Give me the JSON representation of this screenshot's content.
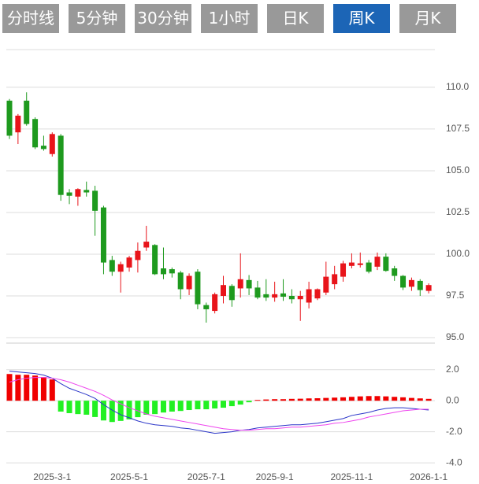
{
  "tabs": [
    "分时线",
    "5分钟",
    "30分钟",
    "1小时",
    "日K",
    "周K",
    "月K"
  ],
  "active_tab": 5,
  "chart_data": [
    {
      "type": "candlestick",
      "categories": [
        null,
        null,
        null,
        null,
        null,
        "2025-3-1",
        null,
        null,
        null,
        null,
        null,
        null,
        null,
        null,
        "2025-5-1",
        null,
        null,
        null,
        null,
        null,
        null,
        null,
        null,
        "2025-7-1",
        null,
        null,
        null,
        null,
        null,
        null,
        null,
        "2025-9-1",
        null,
        null,
        null,
        null,
        null,
        null,
        null,
        null,
        "2025-11-1",
        null,
        null,
        null,
        null,
        null,
        null,
        null,
        null,
        "2026-1-1"
      ],
      "open": [
        109.2,
        107.3,
        109.2,
        108.1,
        106.5,
        106.0,
        107.1,
        103.7,
        103.45,
        103.85,
        103.8,
        102.8,
        99.65,
        98.95,
        99.2,
        99.65,
        100.4,
        100.55,
        99.15,
        99.1,
        98.9,
        97.9,
        98.95,
        96.95,
        96.6,
        97.5,
        98.1,
        97.95,
        98.45,
        98.0,
        97.6,
        97.4,
        97.65,
        97.5,
        97.3,
        97.1,
        97.35,
        97.7,
        98.2,
        98.65,
        99.3,
        99.35,
        99.5,
        99.25,
        99.85,
        99.15,
        98.7,
        98.05,
        98.4,
        97.8
      ],
      "high": [
        109.3,
        108.4,
        109.7,
        108.2,
        107.1,
        107.3,
        107.2,
        103.9,
        103.95,
        104.35,
        104.1,
        102.9,
        99.9,
        99.55,
        99.9,
        100.7,
        101.7,
        100.6,
        100.4,
        99.2,
        99.0,
        98.85,
        99.1,
        97.1,
        97.7,
        98.7,
        98.2,
        100.05,
        98.75,
        98.4,
        98.5,
        98.35,
        98.5,
        97.9,
        97.8,
        98.35,
        97.95,
        99.55,
        99.3,
        99.6,
        100.05,
        100.1,
        99.65,
        100.1,
        100.05,
        99.3,
        98.75,
        98.6,
        98.5,
        98.25
      ],
      "low": [
        106.9,
        106.6,
        107.7,
        106.3,
        106.2,
        105.85,
        103.2,
        103.0,
        102.9,
        103.45,
        101.1,
        98.8,
        98.7,
        97.7,
        98.95,
        98.9,
        100.2,
        98.75,
        98.5,
        98.6,
        97.3,
        97.55,
        96.7,
        95.9,
        96.45,
        97.05,
        96.85,
        97.4,
        97.55,
        97.3,
        97.2,
        97.15,
        97.2,
        97.05,
        96.0,
        96.75,
        97.25,
        97.55,
        97.9,
        98.35,
        99.15,
        99.2,
        98.85,
        99.05,
        98.95,
        98.4,
        97.85,
        97.8,
        97.5,
        97.65
      ],
      "close": [
        107.1,
        108.3,
        107.8,
        106.4,
        106.3,
        107.2,
        103.55,
        103.5,
        103.9,
        103.7,
        102.6,
        99.5,
        98.95,
        99.4,
        99.8,
        100.2,
        100.75,
        98.8,
        98.8,
        98.85,
        97.9,
        98.7,
        97.0,
        96.7,
        97.6,
        98.15,
        97.25,
        98.5,
        97.95,
        97.4,
        97.4,
        97.6,
        97.45,
        97.3,
        97.5,
        97.9,
        97.9,
        98.65,
        98.8,
        99.45,
        99.5,
        99.45,
        98.95,
        99.85,
        99.0,
        98.7,
        98.0,
        98.45,
        97.85,
        98.15
      ],
      "up_color": "#e8141a",
      "down_color": "#1e9a1e",
      "ylim": [
        94.67,
        112.26
      ],
      "yticks": [
        {
          "value": 110,
          "label": "110.0"
        },
        107.5,
        {
          "value": 105,
          "label": "105.0"
        },
        102.5,
        {
          "value": 100,
          "label": "100.0"
        },
        97.5,
        {
          "value": 95,
          "label": "95.0"
        }
      ],
      "grid": true
    },
    {
      "type": "macd",
      "series": [
        {
          "type": "bar",
          "up_color": "#f00000",
          "down_color": "#22f022",
          "values": [
            1.72,
            1.67,
            1.67,
            1.62,
            1.52,
            1.37,
            -0.7,
            -0.8,
            -0.86,
            -0.9,
            -1.05,
            -1.27,
            -1.37,
            -1.3,
            -1.2,
            -1.06,
            -0.9,
            -0.86,
            -0.76,
            -0.7,
            -0.66,
            -0.6,
            -0.55,
            -0.55,
            -0.5,
            -0.45,
            -0.35,
            -0.25,
            -0.1,
            0.05,
            0.08,
            0.1,
            0.1,
            0.12,
            0.13,
            0.15,
            0.16,
            0.18,
            0.2,
            0.22,
            0.25,
            0.28,
            0.3,
            0.3,
            0.28,
            0.25,
            0.22,
            0.18,
            0.15,
            0.12
          ]
        },
        {
          "type": "line",
          "color": "#2a35c8",
          "values": [
            1.9,
            1.85,
            1.8,
            1.75,
            1.65,
            1.45,
            1.1,
            0.8,
            0.6,
            0.4,
            0.15,
            -0.25,
            -0.6,
            -0.9,
            -1.1,
            -1.3,
            -1.45,
            -1.55,
            -1.6,
            -1.65,
            -1.75,
            -1.8,
            -1.9,
            -2.0,
            -2.1,
            -2.05,
            -2.0,
            -1.9,
            -1.85,
            -1.75,
            -1.7,
            -1.65,
            -1.6,
            -1.55,
            -1.55,
            -1.5,
            -1.45,
            -1.35,
            -1.25,
            -1.15,
            -0.95,
            -0.85,
            -0.75,
            -0.6,
            -0.5,
            -0.45,
            -0.45,
            -0.5,
            -0.55,
            -0.6
          ]
        },
        {
          "type": "line",
          "color": "#ee44ee",
          "values": [
            1.2,
            1.35,
            1.45,
            1.5,
            1.5,
            1.45,
            1.35,
            1.2,
            1.0,
            0.8,
            0.6,
            0.35,
            0.05,
            -0.2,
            -0.45,
            -0.65,
            -0.85,
            -1.0,
            -1.1,
            -1.2,
            -1.3,
            -1.4,
            -1.5,
            -1.6,
            -1.7,
            -1.8,
            -1.85,
            -1.9,
            -1.9,
            -1.85,
            -1.8,
            -1.8,
            -1.75,
            -1.7,
            -1.7,
            -1.65,
            -1.6,
            -1.55,
            -1.45,
            -1.4,
            -1.3,
            -1.2,
            -1.05,
            -0.95,
            -0.85,
            -0.75,
            -0.65,
            -0.6,
            -0.55,
            -0.55
          ]
        }
      ],
      "ylim": [
        -4.5,
        3.1
      ],
      "yticks": [
        {
          "value": 2,
          "label": "2.0"
        },
        {
          "value": 0,
          "label": "0.0"
        },
        {
          "value": -2,
          "label": "-2.0"
        },
        {
          "value": -4,
          "label": "-4.0"
        }
      ],
      "grid": true
    }
  ]
}
